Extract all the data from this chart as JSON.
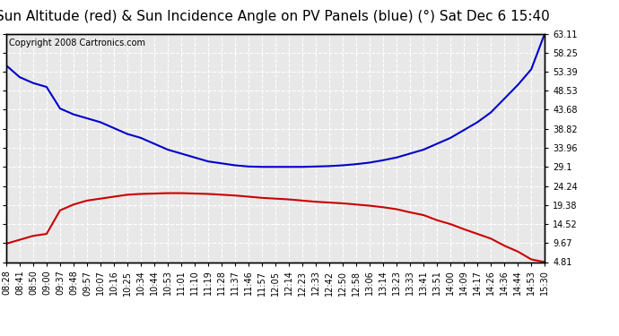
{
  "title": "Sun Altitude (red) & Sun Incidence Angle on PV Panels (blue) (°) Sat Dec 6 15:40",
  "copyright": "Copyright 2008 Cartronics.com",
  "y_ticks": [
    4.81,
    9.67,
    14.52,
    19.38,
    24.24,
    29.1,
    33.96,
    38.82,
    43.68,
    48.53,
    53.39,
    58.25,
    63.11
  ],
  "x_labels": [
    "08:28",
    "08:41",
    "08:50",
    "09:00",
    "09:37",
    "09:48",
    "09:57",
    "10:07",
    "10:16",
    "10:25",
    "10:34",
    "10:44",
    "10:53",
    "11:01",
    "11:10",
    "11:19",
    "11:28",
    "11:37",
    "11:46",
    "11:57",
    "12:05",
    "12:14",
    "12:23",
    "12:33",
    "12:42",
    "12:50",
    "12:58",
    "13:06",
    "13:14",
    "13:23",
    "13:33",
    "13:41",
    "13:51",
    "14:00",
    "14:09",
    "14:17",
    "14:26",
    "14:36",
    "14:44",
    "14:53",
    "15:30"
  ],
  "blue_y": [
    55.0,
    52.0,
    50.5,
    49.5,
    44.0,
    42.5,
    41.5,
    40.5,
    39.0,
    37.5,
    36.5,
    35.0,
    33.5,
    32.5,
    31.5,
    30.5,
    30.0,
    29.5,
    29.2,
    29.1,
    29.1,
    29.1,
    29.1,
    29.2,
    29.3,
    29.5,
    29.8,
    30.2,
    30.8,
    31.5,
    32.5,
    33.5,
    35.0,
    36.5,
    38.5,
    40.5,
    43.0,
    46.5,
    50.0,
    54.0,
    63.11
  ],
  "red_y": [
    9.5,
    10.5,
    11.5,
    12.0,
    18.0,
    19.5,
    20.5,
    21.0,
    21.5,
    22.0,
    22.2,
    22.3,
    22.4,
    22.4,
    22.3,
    22.2,
    22.0,
    21.8,
    21.5,
    21.2,
    21.0,
    20.8,
    20.5,
    20.2,
    20.0,
    19.8,
    19.5,
    19.2,
    18.8,
    18.3,
    17.5,
    16.8,
    15.5,
    14.5,
    13.2,
    12.0,
    10.8,
    9.0,
    7.5,
    5.5,
    4.81
  ],
  "blue_color": "#0000cc",
  "red_color": "#cc0000",
  "background_color": "#ffffff",
  "plot_bg_color": "#e8e8e8",
  "grid_color": "#ffffff",
  "border_color": "#000000",
  "ylim_min": 4.81,
  "ylim_max": 63.11,
  "title_fontsize": 11,
  "copyright_fontsize": 7,
  "tick_fontsize": 7,
  "line_width": 1.5
}
